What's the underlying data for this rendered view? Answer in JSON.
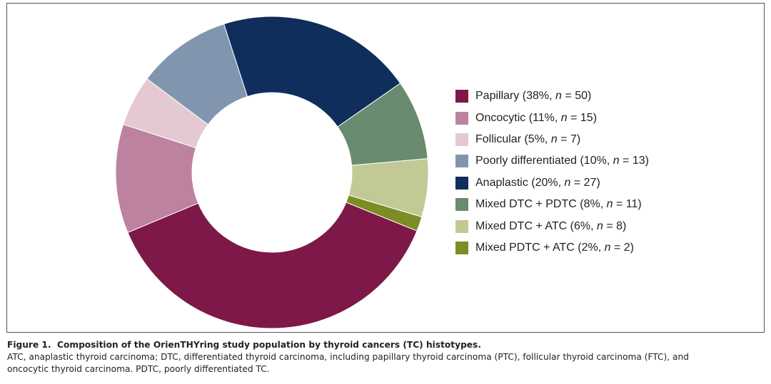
{
  "chart_data": {
    "type": "pie",
    "variant": "donut",
    "title": "",
    "categories": [
      "Papillary",
      "Oncocytic",
      "Follicular",
      "Poorly differentiated",
      "Anaplastic",
      "Mixed DTC + PDTC",
      "Mixed DTC + ATC",
      "Mixed PDTC + ATC"
    ],
    "values": [
      50,
      15,
      7,
      13,
      27,
      11,
      8,
      2
    ],
    "percents": [
      38,
      11,
      5,
      10,
      20,
      8,
      6,
      2
    ],
    "colors": [
      "#7d1848",
      "#bc829f",
      "#e4c9d3",
      "#8196ae",
      "#0f2e5c",
      "#698b70",
      "#c2c995",
      "#7b8d25"
    ],
    "legend_position": "right"
  },
  "legend": [
    {
      "pre": "Papillary (38%, ",
      "n_label": "n",
      "post": " = 50)"
    },
    {
      "pre": "Oncocytic (11%, ",
      "n_label": "n",
      "post": " = 15)"
    },
    {
      "pre": "Follicular (5%, ",
      "n_label": "n",
      "post": " = 7)"
    },
    {
      "pre": "Poorly differentiated (10%, ",
      "n_label": "n",
      "post": " = 13)"
    },
    {
      "pre": "Anaplastic (20%, ",
      "n_label": "n",
      "post": " = 27)"
    },
    {
      "pre": "Mixed DTC + PDTC (8%, ",
      "n_label": "n",
      "post": " = 11)"
    },
    {
      "pre": "Mixed DTC + ATC (6%, ",
      "n_label": "n",
      "post": " = 8)"
    },
    {
      "pre": "Mixed PDTC + ATC (2%, ",
      "n_label": "n",
      "post": " = 2)"
    }
  ],
  "caption": {
    "figure_number": "Figure 1.",
    "title": "Composition of the OrienTHYring study population by thyroid cancers (TC) histotypes.",
    "line1": "ATC, anaplastic thyroid carcinoma; DTC, differentiated thyroid carcinoma, including papillary thyroid carcinoma (PTC), follicular thyroid carcinoma (FTC), and",
    "line2": "oncocytic thyroid carcinoma. PDTC, poorly differentiated TC."
  }
}
